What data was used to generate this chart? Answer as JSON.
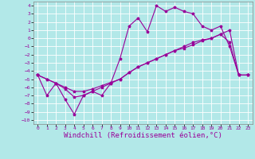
{
  "bg_color": "#b2e8e8",
  "grid_color": "#ffffff",
  "line_color": "#990099",
  "xlabel": "Windchill (Refroidissement éolien,°C)",
  "xlabel_fontsize": 6.5,
  "xlim": [
    -0.5,
    23.5
  ],
  "ylim": [
    -10.5,
    4.5
  ],
  "yticks": [
    -10,
    -9,
    -8,
    -7,
    -6,
    -5,
    -4,
    -3,
    -2,
    -1,
    0,
    1,
    2,
    3,
    4
  ],
  "xticks": [
    0,
    1,
    2,
    3,
    4,
    5,
    6,
    7,
    8,
    9,
    10,
    11,
    12,
    13,
    14,
    15,
    16,
    17,
    18,
    19,
    20,
    21,
    22,
    23
  ],
  "line1_x": [
    0,
    1,
    2,
    3,
    4,
    5,
    6,
    7,
    8,
    9,
    10,
    11,
    12,
    13,
    14,
    15,
    16,
    17,
    18,
    19,
    20,
    21,
    22,
    23
  ],
  "line1_y": [
    -4.5,
    -7.0,
    -5.5,
    -7.5,
    -9.3,
    -7.0,
    -6.5,
    -7.0,
    -5.5,
    -2.5,
    1.5,
    2.5,
    0.8,
    4.0,
    3.3,
    3.8,
    3.3,
    3.0,
    1.5,
    1.0,
    1.5,
    -1.0,
    -4.5,
    -4.5
  ],
  "line2_x": [
    0,
    1,
    2,
    3,
    4,
    5,
    6,
    7,
    8,
    9,
    10,
    11,
    12,
    13,
    14,
    15,
    16,
    17,
    18,
    19,
    20,
    21,
    22,
    23
  ],
  "line2_y": [
    -4.5,
    -5.0,
    -5.5,
    -6.0,
    -6.5,
    -6.5,
    -6.2,
    -5.8,
    -5.4,
    -5.0,
    -4.2,
    -3.5,
    -3.0,
    -2.5,
    -2.0,
    -1.5,
    -1.2,
    -0.8,
    -0.3,
    0.0,
    0.5,
    1.0,
    -4.5,
    -4.5
  ],
  "line3_x": [
    0,
    1,
    2,
    3,
    4,
    5,
    6,
    7,
    8,
    9,
    10,
    11,
    12,
    13,
    14,
    15,
    16,
    17,
    18,
    19,
    20,
    21,
    22,
    23
  ],
  "line3_y": [
    -4.5,
    -5.0,
    -5.5,
    -6.2,
    -7.2,
    -7.0,
    -6.5,
    -6.0,
    -5.5,
    -5.0,
    -4.2,
    -3.5,
    -3.0,
    -2.5,
    -2.0,
    -1.5,
    -1.0,
    -0.5,
    -0.2,
    0.0,
    0.5,
    -0.5,
    -4.5,
    -4.5
  ]
}
